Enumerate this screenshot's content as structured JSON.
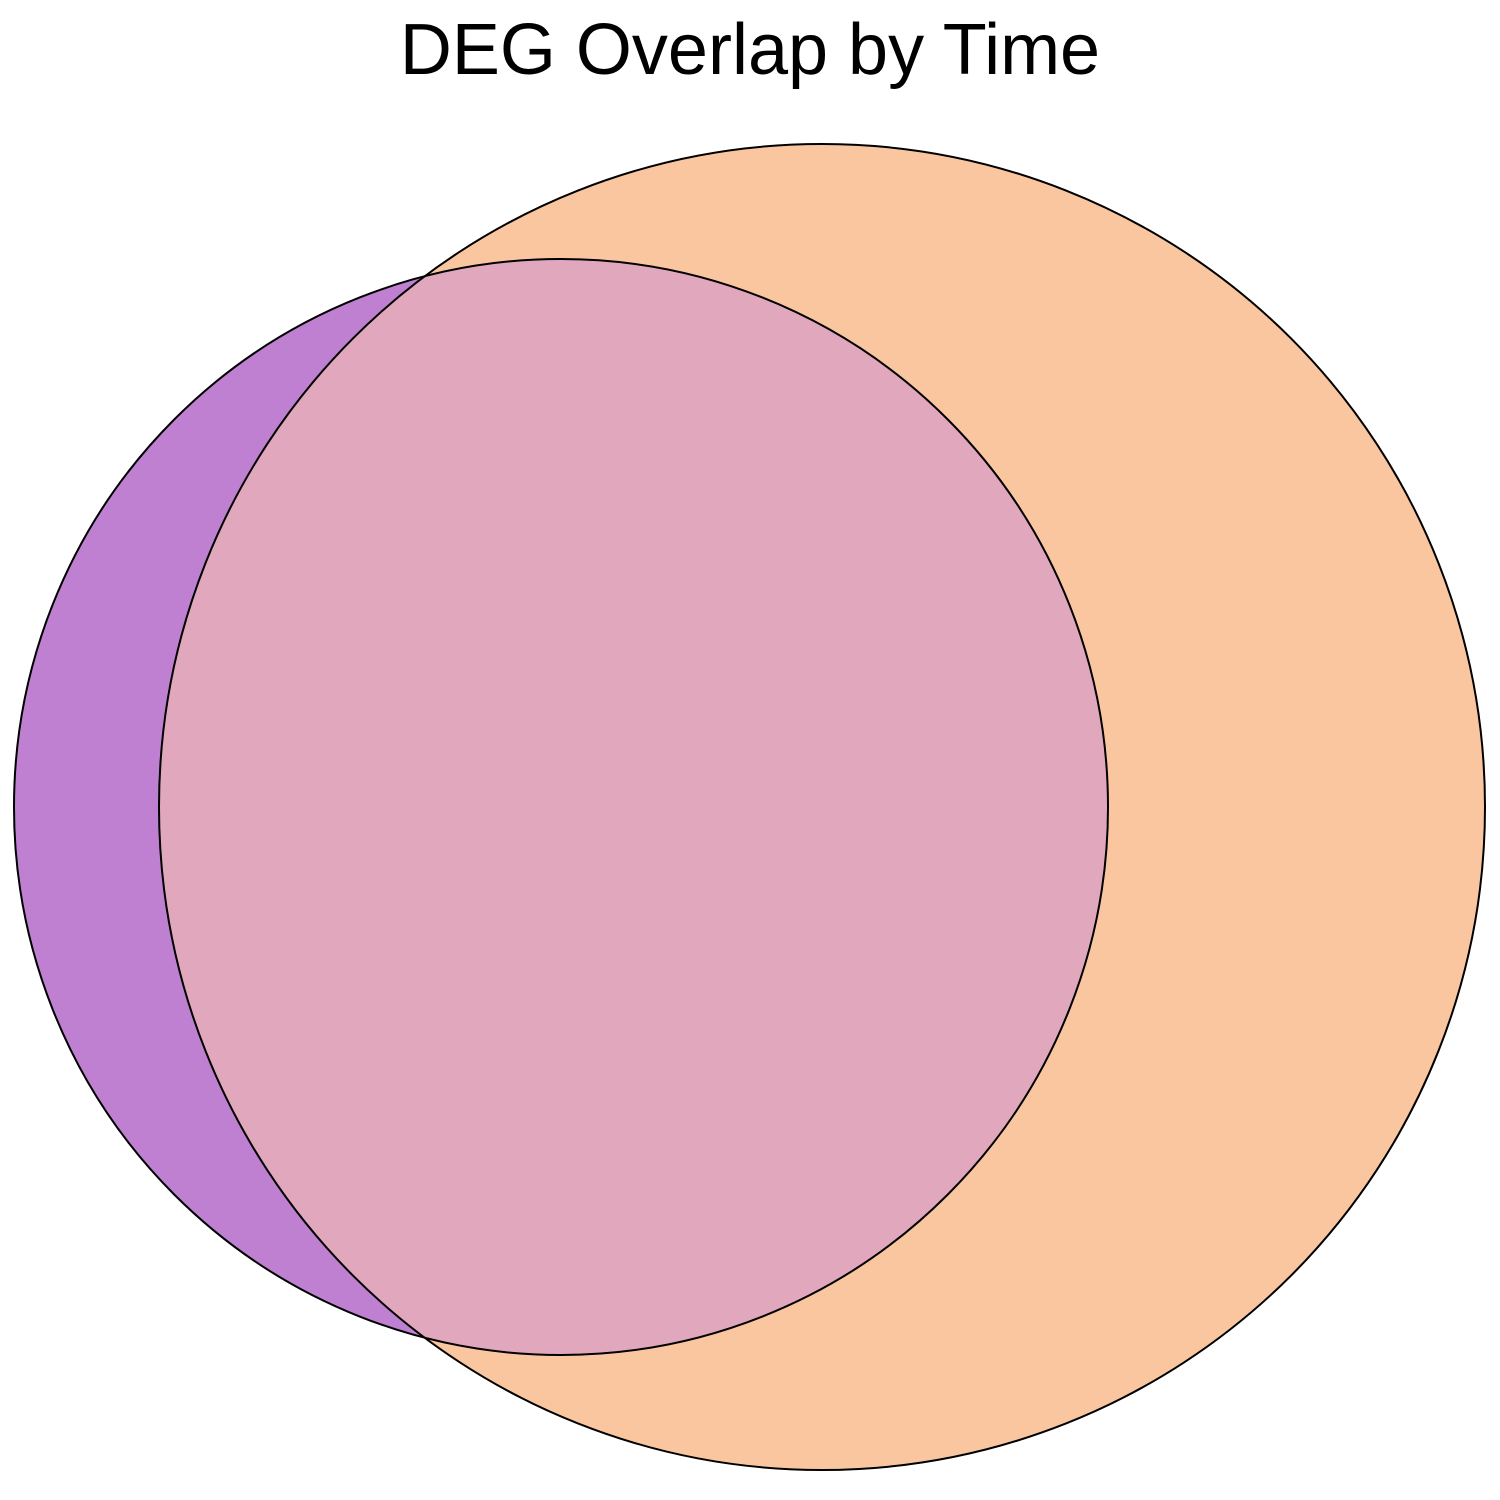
{
  "chart_data": {
    "type": "venn",
    "title": "DEG Overlap by Time",
    "sets": [
      {
        "id": "A",
        "color": "#bf80d1",
        "relative_size": 0.68
      },
      {
        "id": "B",
        "color": "#f9c6a0",
        "relative_size": 1.0
      }
    ],
    "intersection_color": "#e1a7bc",
    "outline_color": "#000000",
    "labels_shown": false
  }
}
